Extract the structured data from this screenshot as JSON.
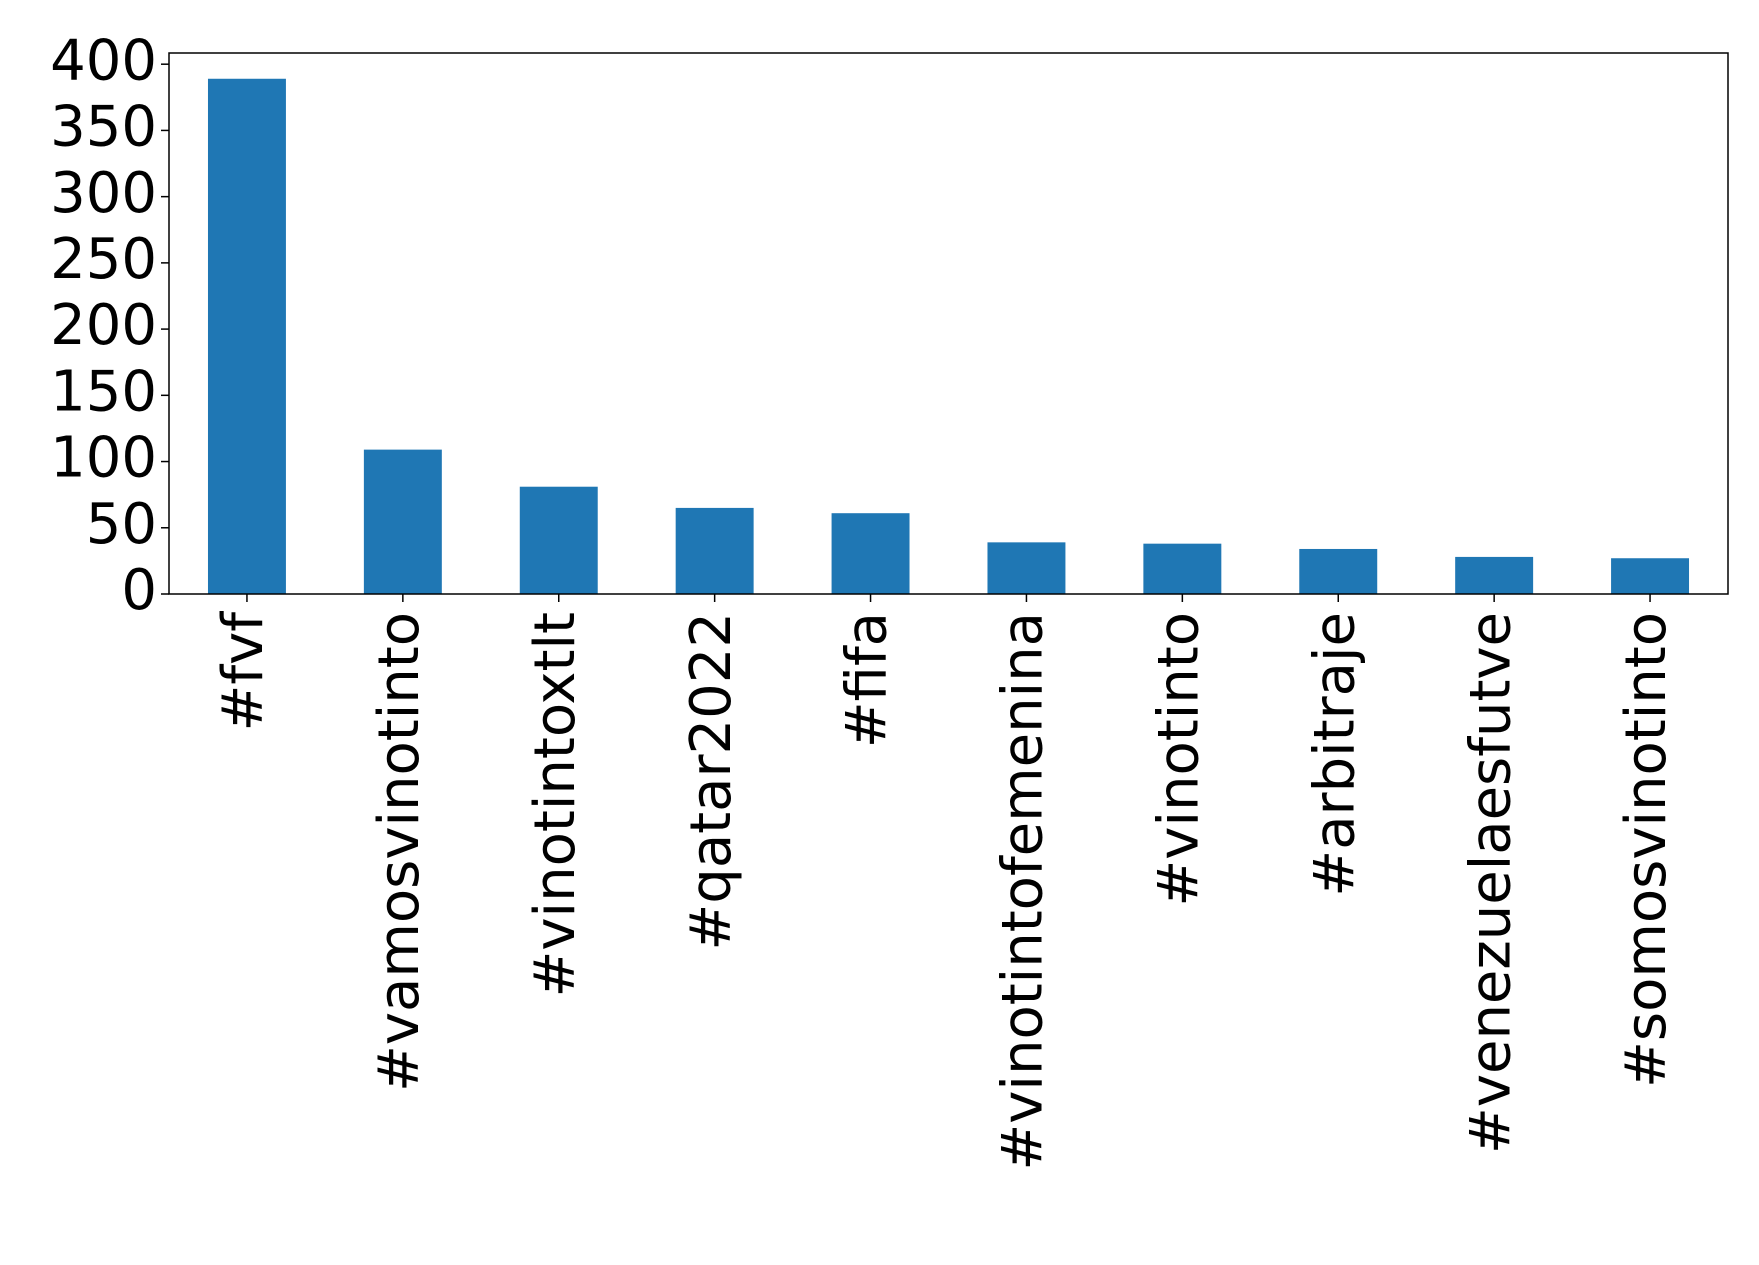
{
  "chart_data": {
    "type": "bar",
    "categories": [
      "#fvf",
      "#vamosvinotinto",
      "#vinotintoxtlt",
      "#qatar2022",
      "#fifa",
      "#vinotintofemenina",
      "#vinotinto",
      "#arbitraje",
      "#venezuelaesfutve",
      "#somosvinotinto"
    ],
    "values": [
      389,
      109,
      81,
      65,
      61,
      39,
      38,
      34,
      28,
      27
    ],
    "color": "#1f77b4",
    "ylim": [
      0,
      408.45
    ],
    "yticks": [
      0,
      50,
      100,
      150,
      200,
      250,
      300,
      350,
      400
    ],
    "grid": false
  }
}
